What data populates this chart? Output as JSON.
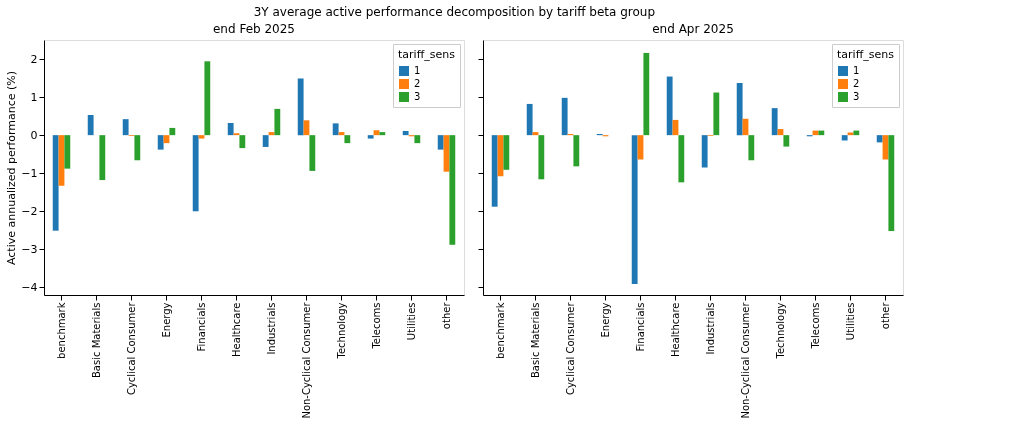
{
  "chart_data": [
    {
      "type": "bar",
      "title": "end Feb 2025",
      "annotations": [
        "3Y average active performance decomposition by tariff beta group"
      ],
      "ylabel": "Active annualized performance (%)",
      "legend_title": "tariff_sens",
      "legend": "top right",
      "grid": false,
      "categories": [
        "benchmark",
        "Basic Materials",
        "Cyclical Consumer",
        "Energy",
        "Financials",
        "Healthcare",
        "Industrials",
        "Non-Cyclical Consumer",
        "Technology",
        "Telecoms",
        "Utilities",
        "other"
      ],
      "ylim": [
        -4.2,
        2.5
      ],
      "yticks": [
        -4,
        -3,
        -2,
        -1,
        0,
        1,
        2
      ],
      "series": [
        {
          "name": "1",
          "color": "#1f77b4",
          "values": [
            -2.51,
            0.53,
            0.42,
            -0.38,
            -2.0,
            0.32,
            -0.31,
            1.49,
            0.31,
            -0.09,
            0.11,
            -0.38
          ]
        },
        {
          "name": "2",
          "color": "#ff7f0e",
          "values": [
            -1.33,
            null,
            -0.02,
            -0.21,
            -0.09,
            0.05,
            0.08,
            0.39,
            0.08,
            0.13,
            -0.03,
            -0.96
          ]
        },
        {
          "name": "3",
          "color": "#2ca02c",
          "values": [
            -0.88,
            -1.18,
            -0.66,
            0.19,
            1.94,
            -0.34,
            0.69,
            -0.94,
            -0.21,
            0.08,
            -0.21,
            -2.88
          ]
        }
      ]
    },
    {
      "type": "bar",
      "title": "end Apr 2025",
      "legend_title": "tariff_sens",
      "legend": "top right",
      "grid": false,
      "tick_labels": "x",
      "categories": [
        "benchmark",
        "Basic Materials",
        "Cyclical Consumer",
        "Energy",
        "Financials",
        "Healthcare",
        "Industrials",
        "Non-Cyclical Consumer",
        "Technology",
        "Telecoms",
        "Utilities",
        "other"
      ],
      "ylim": [
        -4.2,
        2.5
      ],
      "yticks": [
        -4,
        -3,
        -2,
        -1,
        0,
        1,
        2
      ],
      "series": [
        {
          "name": "1",
          "color": "#1f77b4",
          "values": [
            -1.88,
            0.82,
            0.98,
            0.03,
            -3.91,
            1.54,
            -0.85,
            1.37,
            0.71,
            -0.03,
            -0.14,
            -0.19
          ]
        },
        {
          "name": "2",
          "color": "#ff7f0e",
          "values": [
            -1.08,
            0.08,
            0.03,
            -0.03,
            -0.64,
            0.4,
            -0.02,
            0.43,
            0.16,
            0.12,
            0.07,
            -0.64
          ]
        },
        {
          "name": "3",
          "color": "#2ca02c",
          "values": [
            -0.91,
            -1.16,
            -0.82,
            null,
            2.16,
            -1.24,
            1.12,
            -0.66,
            -0.3,
            0.12,
            0.12,
            -2.52
          ]
        }
      ]
    }
  ]
}
